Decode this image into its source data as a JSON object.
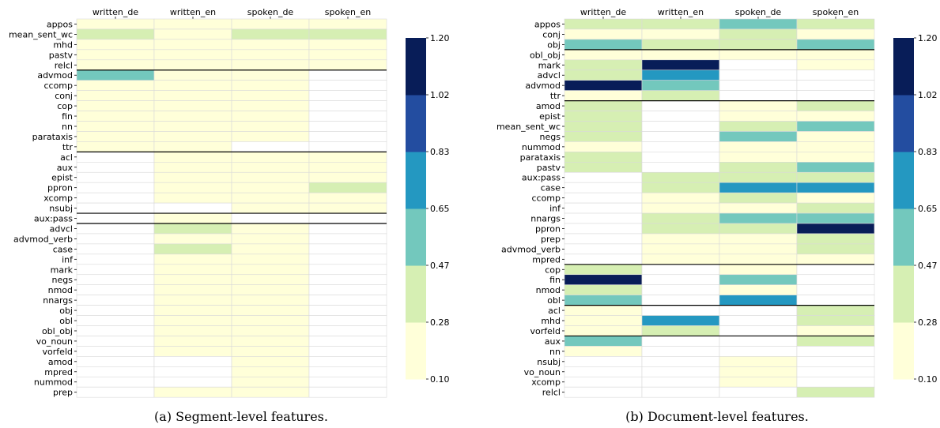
{
  "colors": {
    "bins": [
      "#ffffd9",
      "#d6efb3",
      "#73c8bd",
      "#2498c1",
      "#234da0",
      "#081d58"
    ],
    "grid": "#d9d9d9",
    "separator": "#000000"
  },
  "colorbar": {
    "ticks": [
      "1.20",
      "1.02",
      "0.83",
      "0.65",
      "0.47",
      "0.28",
      "0.10"
    ],
    "vmin": 0.1,
    "vmax": 1.2
  },
  "chart_data": [
    {
      "type": "heatmap",
      "caption": "(a) Segment-level features.",
      "columns": [
        "written_de",
        "written_en",
        "spoken_de",
        "spoken_en"
      ],
      "rows": [
        "appos",
        "mean_sent_wc",
        "mhd",
        "pastv",
        "relcl",
        "advmod",
        "ccomp",
        "conj",
        "cop",
        "fin",
        "nn",
        "parataxis",
        "ttr",
        "acl",
        "aux",
        "epist",
        "ppron",
        "xcomp",
        "nsubj",
        "aux:pass",
        "advcl",
        "advmod_verb",
        "case",
        "inf",
        "mark",
        "negs",
        "nmod",
        "nnargs",
        "obj",
        "obl",
        "obl_obj",
        "vo_noun",
        "vorfeld",
        "amod",
        "mpred",
        "nummod",
        "prep"
      ],
      "separators_after_row": [
        4,
        12,
        18,
        19
      ],
      "values": [
        [
          0.2,
          0.2,
          0.2,
          0.2
        ],
        [
          0.35,
          0.2,
          0.35,
          0.35
        ],
        [
          0.2,
          0.2,
          0.2,
          0.2
        ],
        [
          0.2,
          0.2,
          0.2,
          0.2
        ],
        [
          0.2,
          0.2,
          0.2,
          0.2
        ],
        [
          0.55,
          0.2,
          0.2,
          null
        ],
        [
          0.2,
          0.2,
          0.2,
          null
        ],
        [
          0.2,
          0.2,
          0.2,
          null
        ],
        [
          0.2,
          0.2,
          0.2,
          null
        ],
        [
          0.2,
          0.2,
          0.2,
          null
        ],
        [
          0.2,
          0.2,
          0.2,
          null
        ],
        [
          0.2,
          0.2,
          0.2,
          null
        ],
        [
          0.2,
          0.2,
          null,
          null
        ],
        [
          null,
          0.2,
          0.2,
          0.2
        ],
        [
          null,
          0.2,
          0.2,
          0.2
        ],
        [
          null,
          0.2,
          0.2,
          0.2
        ],
        [
          null,
          0.2,
          0.2,
          0.35
        ],
        [
          null,
          0.2,
          0.2,
          0.2
        ],
        [
          null,
          null,
          0.2,
          0.2
        ],
        [
          null,
          0.2,
          null,
          null
        ],
        [
          null,
          0.35,
          0.2,
          null
        ],
        [
          null,
          0.2,
          0.2,
          null
        ],
        [
          null,
          0.35,
          0.2,
          null
        ],
        [
          null,
          0.2,
          0.2,
          null
        ],
        [
          null,
          0.2,
          0.2,
          null
        ],
        [
          null,
          0.2,
          0.2,
          null
        ],
        [
          null,
          0.2,
          0.2,
          null
        ],
        [
          null,
          0.2,
          0.2,
          null
        ],
        [
          null,
          0.2,
          0.2,
          null
        ],
        [
          null,
          0.2,
          0.2,
          null
        ],
        [
          null,
          0.2,
          0.2,
          null
        ],
        [
          null,
          0.2,
          0.2,
          null
        ],
        [
          null,
          0.2,
          0.2,
          null
        ],
        [
          null,
          null,
          0.2,
          null
        ],
        [
          null,
          null,
          0.2,
          null
        ],
        [
          null,
          null,
          0.2,
          null
        ],
        [
          null,
          0.2,
          0.2,
          null
        ]
      ]
    },
    {
      "type": "heatmap",
      "caption": "(b) Document-level features.",
      "columns": [
        "written_de",
        "written_en",
        "spoken_de",
        "spoken_en"
      ],
      "rows": [
        "appos",
        "conj",
        "obj",
        "obl_obj",
        "mark",
        "advcl",
        "advmod",
        "ttr",
        "amod",
        "epist",
        "mean_sent_wc",
        "negs",
        "nummod",
        "parataxis",
        "pastv",
        "aux:pass",
        "case",
        "ccomp",
        "inf",
        "nnargs",
        "ppron",
        "prep",
        "advmod_verb",
        "mpred",
        "cop",
        "fin",
        "nmod",
        "obl",
        "acl",
        "mhd",
        "vorfeld",
        "aux",
        "nn",
        "nsubj",
        "vo_noun",
        "xcomp",
        "relcl"
      ],
      "separators_after_row": [
        2,
        7,
        23,
        27,
        30
      ],
      "values": [
        [
          0.35,
          0.35,
          0.55,
          0.35
        ],
        [
          0.2,
          0.2,
          0.35,
          0.2
        ],
        [
          0.55,
          0.35,
          0.35,
          0.55
        ],
        [
          0.2,
          0.2,
          0.2,
          0.2
        ],
        [
          0.35,
          1.1,
          null,
          0.2
        ],
        [
          0.35,
          0.8,
          null,
          null
        ],
        [
          1.2,
          0.55,
          null,
          null
        ],
        [
          0.2,
          0.35,
          null,
          null
        ],
        [
          0.35,
          null,
          0.2,
          0.35
        ],
        [
          0.35,
          null,
          0.2,
          0.2
        ],
        [
          0.35,
          null,
          0.35,
          0.55
        ],
        [
          0.35,
          null,
          0.55,
          0.2
        ],
        [
          0.2,
          null,
          0.2,
          0.2
        ],
        [
          0.35,
          null,
          0.2,
          0.2
        ],
        [
          0.35,
          null,
          0.35,
          0.55
        ],
        [
          null,
          0.35,
          0.35,
          0.35
        ],
        [
          null,
          0.35,
          0.8,
          0.8
        ],
        [
          null,
          0.2,
          0.35,
          0.2
        ],
        [
          null,
          0.2,
          0.2,
          0.35
        ],
        [
          null,
          0.35,
          0.55,
          0.55
        ],
        [
          null,
          0.35,
          0.35,
          1.2
        ],
        [
          null,
          0.2,
          0.2,
          0.35
        ],
        [
          null,
          0.2,
          0.2,
          0.35
        ],
        [
          null,
          0.2,
          0.2,
          0.2
        ],
        [
          0.35,
          null,
          0.2,
          null
        ],
        [
          1.2,
          null,
          0.55,
          null
        ],
        [
          0.35,
          null,
          0.2,
          null
        ],
        [
          0.55,
          null,
          0.8,
          null
        ],
        [
          0.2,
          null,
          null,
          0.35
        ],
        [
          0.2,
          0.8,
          null,
          0.35
        ],
        [
          0.2,
          0.35,
          null,
          0.2
        ],
        [
          0.55,
          null,
          null,
          0.35
        ],
        [
          0.2,
          null,
          null,
          null
        ],
        [
          null,
          null,
          0.2,
          null
        ],
        [
          null,
          null,
          0.2,
          null
        ],
        [
          null,
          null,
          0.2,
          null
        ],
        [
          null,
          null,
          null,
          0.35
        ]
      ]
    }
  ]
}
